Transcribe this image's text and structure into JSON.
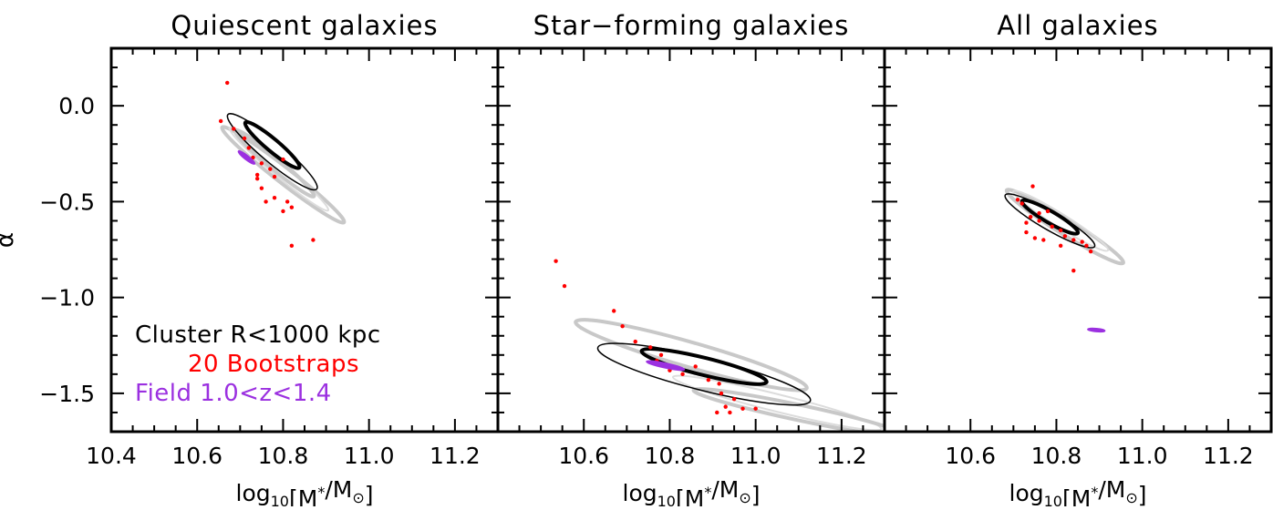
{
  "chart_data": [
    {
      "type": "scatter",
      "title": "Quiescent galaxies",
      "xlabel": "log10[M*/M⊙]",
      "ylabel": "α",
      "xlim": [
        10.4,
        11.3
      ],
      "ylim": [
        -1.7,
        0.3
      ],
      "x_ticks": [
        "10.4",
        "10.6",
        "10.8",
        "11.0",
        "11.2"
      ],
      "y_ticks": [
        "0.0",
        "−0.5",
        "−1.0",
        "−1.5"
      ],
      "legend": [
        {
          "label": "Cluster R<1000 kpc",
          "color": "#000000"
        },
        {
          "label": "20 Bootstraps",
          "color": "#ff0000"
        },
        {
          "label": "Field 1.0<z<1.4",
          "color": "#9b30e0"
        }
      ],
      "series": [
        {
          "name": "Cluster R<1000 kpc",
          "contours": [
            {
              "cx": 10.775,
              "cy": -0.205,
              "rx": 0.082,
              "ry": 0.032,
              "angle": 40,
              "weight": "thick"
            },
            {
              "cx": 10.775,
              "cy": -0.24,
              "rx": 0.135,
              "ry": 0.055,
              "angle": 40,
              "weight": "thin"
            }
          ]
        },
        {
          "name": "20 Bootstraps",
          "color": "#ff0000",
          "points": [
            [
              10.67,
              0.12
            ],
            [
              10.655,
              -0.08
            ],
            [
              10.685,
              -0.12
            ],
            [
              10.71,
              -0.17
            ],
            [
              10.72,
              -0.22
            ],
            [
              10.73,
              -0.27
            ],
            [
              10.75,
              -0.3
            ],
            [
              10.77,
              -0.33
            ],
            [
              10.78,
              -0.37
            ],
            [
              10.8,
              -0.28
            ],
            [
              10.74,
              -0.38
            ],
            [
              10.75,
              -0.43
            ],
            [
              10.76,
              -0.5
            ],
            [
              10.78,
              -0.48
            ],
            [
              10.81,
              -0.5
            ],
            [
              10.82,
              -0.53
            ],
            [
              10.8,
              -0.55
            ],
            [
              10.74,
              -0.36
            ],
            [
              10.82,
              -0.73
            ],
            [
              10.87,
              -0.7
            ]
          ]
        },
        {
          "name": "Field 1.0<z<1.4",
          "color": "#9b30e0",
          "contours": [
            {
              "cx": 10.715,
              "cy": -0.27,
              "rx": 0.024,
              "ry": 0.011,
              "angle": 38
            }
          ]
        }
      ],
      "bootstrap_contours": [
        {
          "cx": 10.8,
          "cy": -0.36,
          "rx": 0.18,
          "ry": 0.04,
          "angle": 38
        },
        {
          "cx": 10.79,
          "cy": -0.33,
          "rx": 0.15,
          "ry": 0.035,
          "angle": 40
        },
        {
          "cx": 10.78,
          "cy": -0.3,
          "rx": 0.12,
          "ry": 0.03,
          "angle": 40
        }
      ]
    },
    {
      "type": "scatter",
      "title": "Star−forming galaxies",
      "xlabel": "log10[M*/M⊙]",
      "xlim": [
        10.4,
        11.3
      ],
      "ylim": [
        -1.7,
        0.3
      ],
      "x_ticks": [
        "10.6",
        "10.8",
        "11.0",
        "11.2"
      ],
      "series": [
        {
          "name": "Cluster R<1000 kpc",
          "contours": [
            {
              "cx": 10.88,
              "cy": -1.36,
              "rx": 0.15,
              "ry": 0.045,
              "angle": 14,
              "weight": "thick"
            },
            {
              "cx": 10.88,
              "cy": -1.4,
              "rx": 0.255,
              "ry": 0.085,
              "angle": 14,
              "weight": "thin"
            }
          ]
        },
        {
          "name": "20 Bootstraps",
          "color": "#ff0000",
          "points": [
            [
              10.535,
              -0.81
            ],
            [
              10.555,
              -0.94
            ],
            [
              10.67,
              -1.07
            ],
            [
              10.69,
              -1.15
            ],
            [
              10.755,
              -1.26
            ],
            [
              10.78,
              -1.3
            ],
            [
              10.8,
              -1.38
            ],
            [
              10.86,
              -1.36
            ],
            [
              10.915,
              -1.45
            ],
            [
              10.92,
              -1.5
            ],
            [
              10.93,
              -1.57
            ],
            [
              10.94,
              -1.6
            ],
            [
              10.97,
              -1.58
            ],
            [
              11.0,
              -1.58
            ],
            [
              10.91,
              -1.6
            ],
            [
              10.77,
              -1.33
            ],
            [
              10.83,
              -1.4
            ],
            [
              10.89,
              -1.43
            ],
            [
              10.95,
              -1.53
            ],
            [
              10.72,
              -1.23
            ]
          ]
        },
        {
          "name": "Field 1.0<z<1.4",
          "color": "#9b30e0",
          "contours": [
            {
              "cx": 10.79,
              "cy": -1.355,
              "rx": 0.045,
              "ry": 0.012,
              "angle": 12
            }
          ]
        }
      ],
      "bootstrap_contours": [
        {
          "cx": 10.85,
          "cy": -1.3,
          "rx": 0.28,
          "ry": 0.065,
          "angle": 16
        },
        {
          "cx": 11.05,
          "cy": -1.55,
          "rx": 0.25,
          "ry": 0.045,
          "angle": 14
        },
        {
          "cx": 11.1,
          "cy": -1.6,
          "rx": 0.25,
          "ry": 0.04,
          "angle": 12
        }
      ]
    },
    {
      "type": "scatter",
      "title": "All galaxies",
      "xlabel": "log10[M*/M⊙]",
      "xlim": [
        10.4,
        11.3
      ],
      "ylim": [
        -1.7,
        0.3
      ],
      "x_ticks": [
        "10.6",
        "10.8",
        "11.0",
        "11.2"
      ],
      "series": [
        {
          "name": "Cluster R<1000 kpc",
          "contours": [
            {
              "cx": 10.785,
              "cy": -0.58,
              "rx": 0.075,
              "ry": 0.03,
              "angle": 30,
              "weight": "thick"
            },
            {
              "cx": 10.785,
              "cy": -0.6,
              "rx": 0.12,
              "ry": 0.048,
              "angle": 30,
              "weight": "thin"
            }
          ]
        },
        {
          "name": "20 Bootstraps",
          "color": "#ff0000",
          "points": [
            [
              10.745,
              -0.42
            ],
            [
              10.71,
              -0.49
            ],
            [
              10.72,
              -0.51
            ],
            [
              10.76,
              -0.56
            ],
            [
              10.78,
              -0.55
            ],
            [
              10.74,
              -0.58
            ],
            [
              10.73,
              -0.61
            ],
            [
              10.76,
              -0.6
            ],
            [
              10.79,
              -0.63
            ],
            [
              10.81,
              -0.65
            ],
            [
              10.82,
              -0.68
            ],
            [
              10.84,
              -0.7
            ],
            [
              10.86,
              -0.71
            ],
            [
              10.87,
              -0.73
            ],
            [
              10.88,
              -0.76
            ],
            [
              10.73,
              -0.66
            ],
            [
              10.75,
              -0.69
            ],
            [
              10.77,
              -0.7
            ],
            [
              10.81,
              -0.73
            ],
            [
              10.84,
              -0.86
            ]
          ]
        },
        {
          "name": "Field 1.0<z<1.4",
          "color": "#9b30e0",
          "contours": [
            {
              "cx": 10.893,
              "cy": -1.17,
              "rx": 0.02,
              "ry": 0.008,
              "angle": 5
            }
          ]
        }
      ],
      "bootstrap_contours": [
        {
          "cx": 10.82,
          "cy": -0.63,
          "rx": 0.16,
          "ry": 0.04,
          "angle": 32
        },
        {
          "cx": 10.81,
          "cy": -0.6,
          "rx": 0.13,
          "ry": 0.035,
          "angle": 32
        }
      ]
    }
  ],
  "colors": {
    "axis": "#000000",
    "bootstrap_contour": "#c8c8c8",
    "bootstrap_contour_light": "#dcdcdc",
    "bootstrap_points": "#ff0000",
    "field": "#9b30e0"
  }
}
